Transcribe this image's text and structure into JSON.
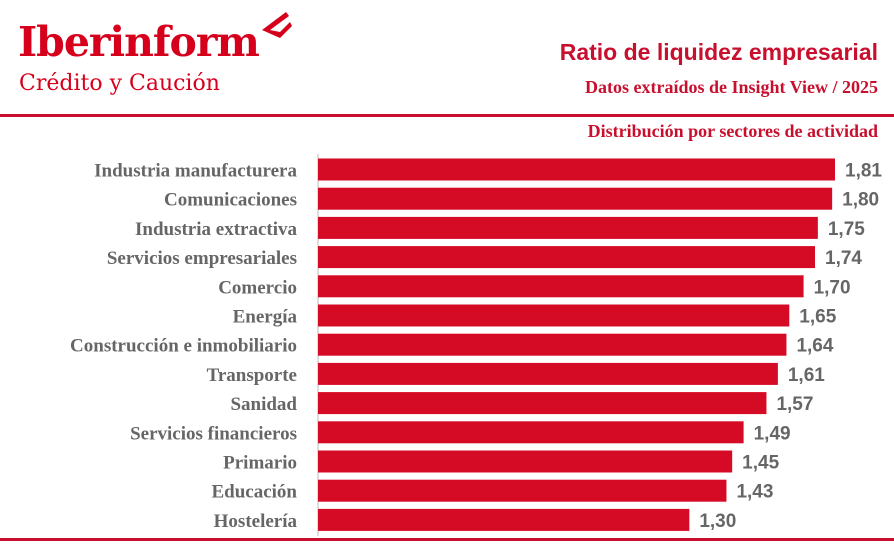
{
  "brand": {
    "name": "Iberinform",
    "tagline": "Crédito y Caución",
    "color": "#d6001c"
  },
  "colors": {
    "bar": "#d50a25",
    "label": "#666666",
    "rule": "#c8102e"
  },
  "chart_data": {
    "type": "bar",
    "orientation": "horizontal",
    "title": "Ratio de liquidez empresarial",
    "subtitle": "Datos extraídos de Insight View / 2025",
    "section": "Distribución por sectores de actividad",
    "categories": [
      "Industria manufacturera",
      "Comunicaciones",
      "Industria extractiva",
      "Servicios empresariales",
      "Comercio",
      "Energía",
      "Construcción e inmobiliario",
      "Transporte",
      "Sanidad",
      "Servicios financieros",
      "Primario",
      "Educación",
      "Hostelería"
    ],
    "values": [
      1.81,
      1.8,
      1.75,
      1.74,
      1.7,
      1.65,
      1.64,
      1.61,
      1.57,
      1.49,
      1.45,
      1.43,
      1.3
    ],
    "value_labels": [
      "1,81",
      "1,80",
      "1,75",
      "1,74",
      "1,70",
      "1,65",
      "1,64",
      "1,61",
      "1,57",
      "1,49",
      "1,45",
      "1,43",
      "1,30"
    ],
    "xlim": [
      0,
      1.81
    ],
    "grid": false,
    "legend": "none"
  }
}
